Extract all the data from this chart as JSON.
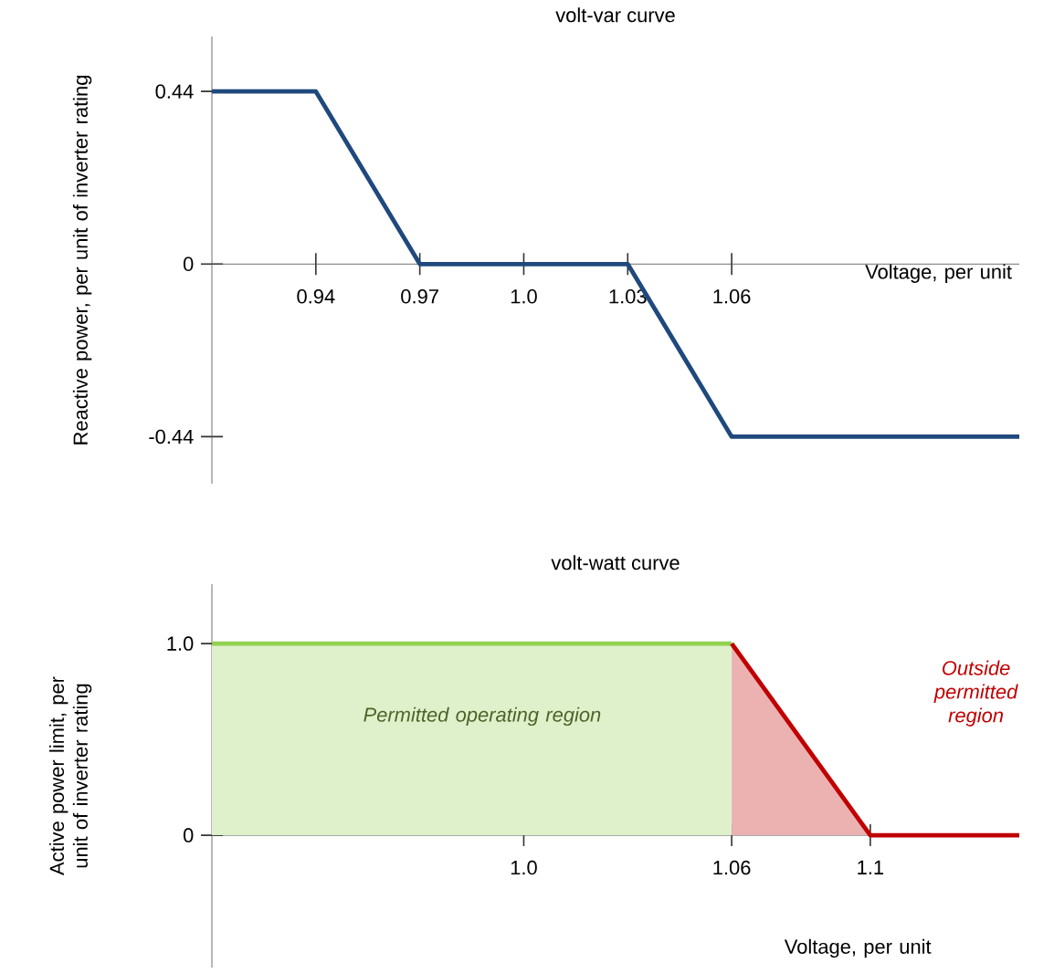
{
  "chart_data": [
    {
      "type": "line",
      "title": "volt-var curve",
      "xlabel": "Voltage, per unit",
      "ylabel": "Reactive power, per unit of inverter rating",
      "xlim": [
        0.91,
        1.143
      ],
      "ylim": [
        -0.56,
        0.58
      ],
      "xticks": [
        0.94,
        0.97,
        {
          "value": 1,
          "label": "1.0"
        },
        1.03,
        1.06
      ],
      "yticks": [
        -0.44,
        0,
        0.44
      ],
      "series": [
        {
          "color": "#1f497d",
          "x": [
            0.91,
            0.94,
            0.97,
            1.03,
            1.06,
            1.143
          ],
          "values": [
            0.44,
            0.44,
            0,
            0,
            -0.44,
            -0.44
          ]
        }
      ]
    },
    {
      "type": "area",
      "title": "volt-watt curve",
      "xlabel": "Voltage, per unit",
      "ylabel": "Active power limit, per unit of inverter rating",
      "xlim": [
        0.91,
        1.143
      ],
      "ylim": [
        -0.69,
        1.31
      ],
      "xticks": [
        {
          "value": 1,
          "label": "1.0"
        },
        1.06,
        1.1
      ],
      "yticks": [
        0,
        {
          "value": 1,
          "label": "1.0"
        }
      ],
      "annotations": [
        "Permitted operating region",
        "Outside permitted region"
      ],
      "series": [
        {
          "color": "#92d050",
          "x": [
            0.91,
            1.06
          ],
          "values": [
            1,
            1
          ]
        },
        {
          "color": "#c00000",
          "x": [
            1.06,
            1.1,
            1.143
          ],
          "values": [
            1,
            0,
            0
          ]
        }
      ]
    }
  ]
}
